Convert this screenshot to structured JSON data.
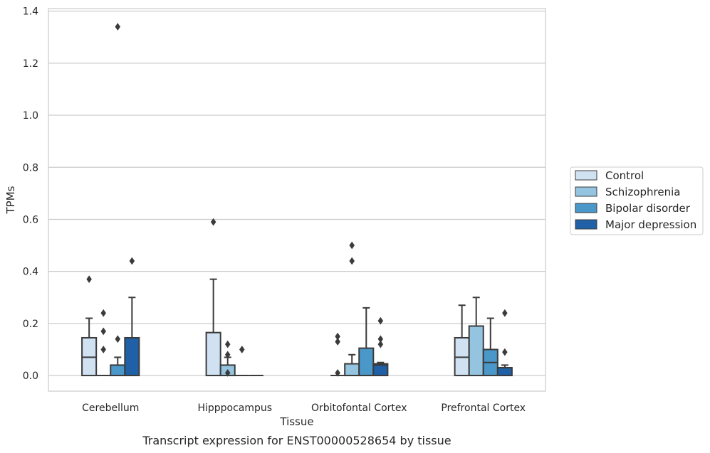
{
  "caption": "Transcript expression for ENST00000528654 by tissue",
  "chart_data": {
    "type": "box",
    "xlabel": "Tissue",
    "ylabel": "TPMs",
    "ylim": [
      -0.06,
      1.41
    ],
    "yticks": [
      0.0,
      0.2,
      0.4,
      0.6,
      0.8,
      1.0,
      1.2,
      1.4
    ],
    "ytick_labels": [
      "0.0",
      "0.2",
      "0.4",
      "0.6",
      "0.8",
      "1.0",
      "1.2",
      "1.4"
    ],
    "grid": "horizontal",
    "legend_position": "right",
    "categories": [
      "Cerebellum",
      "Hipppocampus",
      "Orbitofontal Cortex",
      "Prefrontal Cortex"
    ],
    "series": [
      {
        "name": "Control",
        "color": "#d0e1f2",
        "boxes": [
          {
            "min": 0.0,
            "q1": 0.0,
            "median": 0.07,
            "q3": 0.145,
            "max": 0.22,
            "outliers": [
              0.37
            ]
          },
          {
            "min": 0.0,
            "q1": 0.0,
            "median": 0.0,
            "q3": 0.165,
            "max": 0.37,
            "outliers": [
              0.59
            ]
          },
          {
            "min": 0.0,
            "q1": 0.0,
            "median": 0.0,
            "q3": 0.0,
            "max": 0.0,
            "outliers": [
              0.01,
              0.13,
              0.15
            ]
          },
          {
            "min": 0.0,
            "q1": 0.0,
            "median": 0.07,
            "q3": 0.145,
            "max": 0.27,
            "outliers": []
          }
        ]
      },
      {
        "name": "Schizophrenia",
        "color": "#94c4df",
        "boxes": [
          {
            "min": 0.0,
            "q1": 0.0,
            "median": 0.0,
            "q3": 0.0,
            "max": 0.0,
            "outliers": [
              0.1,
              0.17,
              0.24
            ]
          },
          {
            "min": 0.0,
            "q1": 0.0,
            "median": 0.0,
            "q3": 0.04,
            "max": 0.07,
            "outliers": [
              0.01,
              0.08,
              0.12
            ]
          },
          {
            "min": 0.0,
            "q1": 0.0,
            "median": 0.0,
            "q3": 0.045,
            "max": 0.08,
            "outliers": [
              0.44,
              0.5
            ]
          },
          {
            "min": 0.0,
            "q1": 0.0,
            "median": 0.0,
            "q3": 0.19,
            "max": 0.3,
            "outliers": []
          }
        ]
      },
      {
        "name": "Bipolar disorder",
        "color": "#4a98c9",
        "boxes": [
          {
            "min": 0.0,
            "q1": 0.0,
            "median": 0.0,
            "q3": 0.04,
            "max": 0.07,
            "outliers": [
              0.14,
              1.34
            ]
          },
          {
            "min": 0.0,
            "q1": 0.0,
            "median": 0.0,
            "q3": 0.0,
            "max": 0.0,
            "outliers": [
              0.1
            ]
          },
          {
            "min": 0.0,
            "q1": 0.0,
            "median": 0.0,
            "q3": 0.105,
            "max": 0.26,
            "outliers": []
          },
          {
            "min": 0.0,
            "q1": 0.0,
            "median": 0.05,
            "q3": 0.1,
            "max": 0.22,
            "outliers": []
          }
        ]
      },
      {
        "name": "Major depression",
        "color": "#2060a7",
        "boxes": [
          {
            "min": 0.0,
            "q1": 0.0,
            "median": 0.0,
            "q3": 0.145,
            "max": 0.3,
            "outliers": [
              0.44
            ]
          },
          {
            "min": 0.0,
            "q1": 0.0,
            "median": 0.0,
            "q3": 0.0,
            "max": 0.0,
            "outliers": []
          },
          {
            "min": 0.0,
            "q1": 0.0,
            "median": 0.04,
            "q3": 0.045,
            "max": 0.05,
            "outliers": [
              0.12,
              0.14,
              0.21
            ]
          },
          {
            "min": 0.0,
            "q1": 0.0,
            "median": 0.03,
            "q3": 0.03,
            "max": 0.04,
            "outliers": [
              0.09,
              0.24
            ]
          }
        ]
      }
    ]
  }
}
